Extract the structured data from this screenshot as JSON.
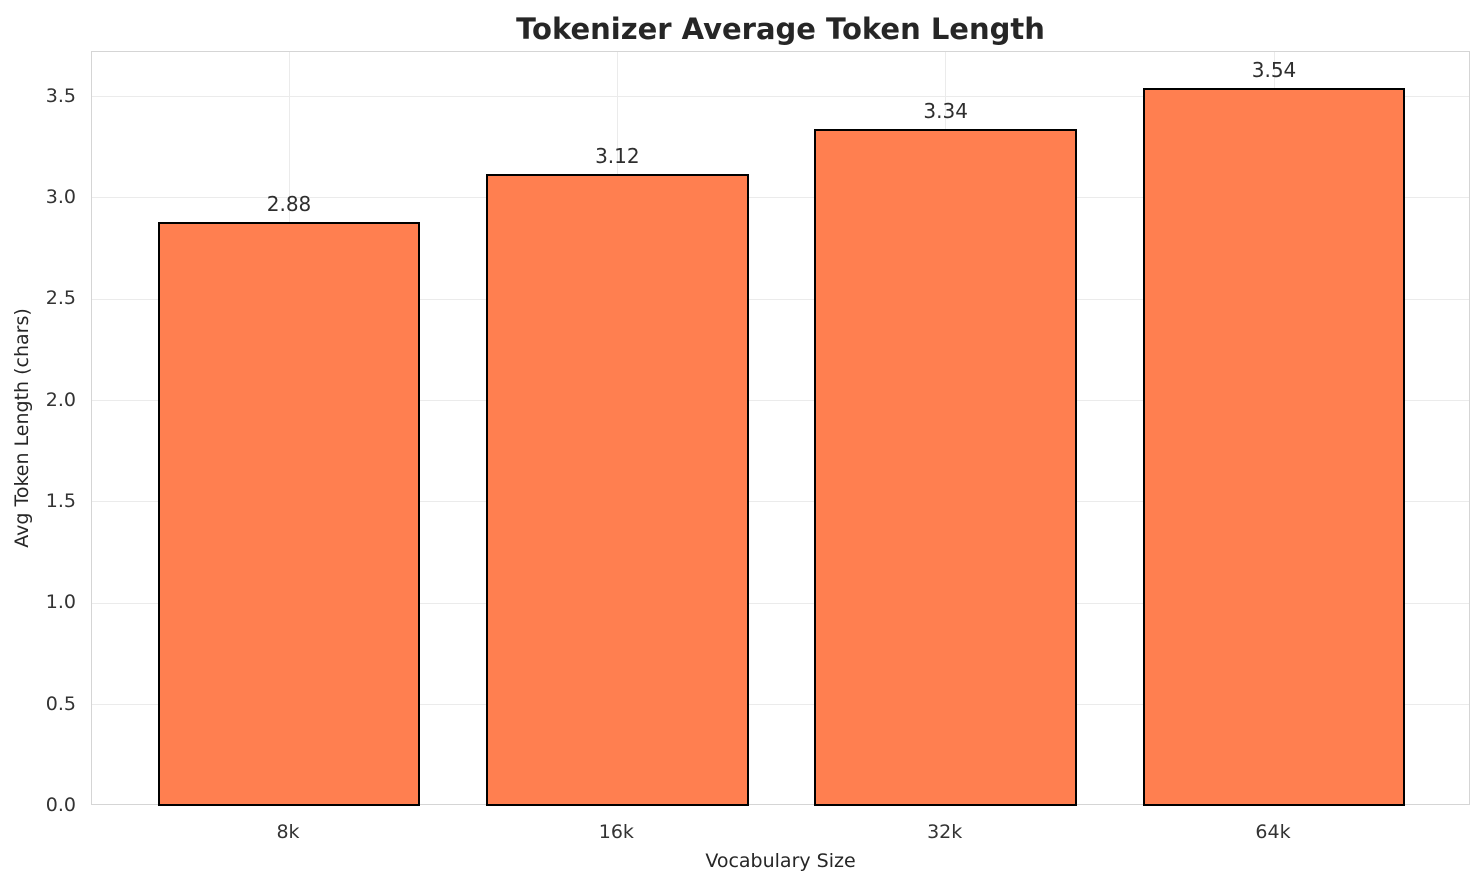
{
  "chart_data": {
    "type": "bar",
    "title": "Tokenizer Average Token Length",
    "xlabel": "Vocabulary Size",
    "ylabel": "Avg Token Length (chars)",
    "categories": [
      "8k",
      "16k",
      "32k",
      "64k"
    ],
    "values": [
      2.88,
      3.12,
      3.34,
      3.54
    ],
    "value_labels": [
      "2.88",
      "3.12",
      "3.34",
      "3.54"
    ],
    "yticks": [
      0.0,
      0.5,
      1.0,
      1.5,
      2.0,
      2.5,
      3.0,
      3.5
    ],
    "ytick_labels": [
      "0.0",
      "0.5",
      "1.0",
      "1.5",
      "2.0",
      "2.5",
      "3.0",
      "3.5"
    ],
    "ylim": [
      0,
      3.72
    ],
    "grid": true,
    "legend": "none",
    "bar_color": "#FF7F50",
    "bar_edge_color": "#000000",
    "bar_width_fraction": 0.8,
    "text_color": "#262626",
    "grid_color": "#ebebeb",
    "spine_color": "#d5d5d5"
  }
}
